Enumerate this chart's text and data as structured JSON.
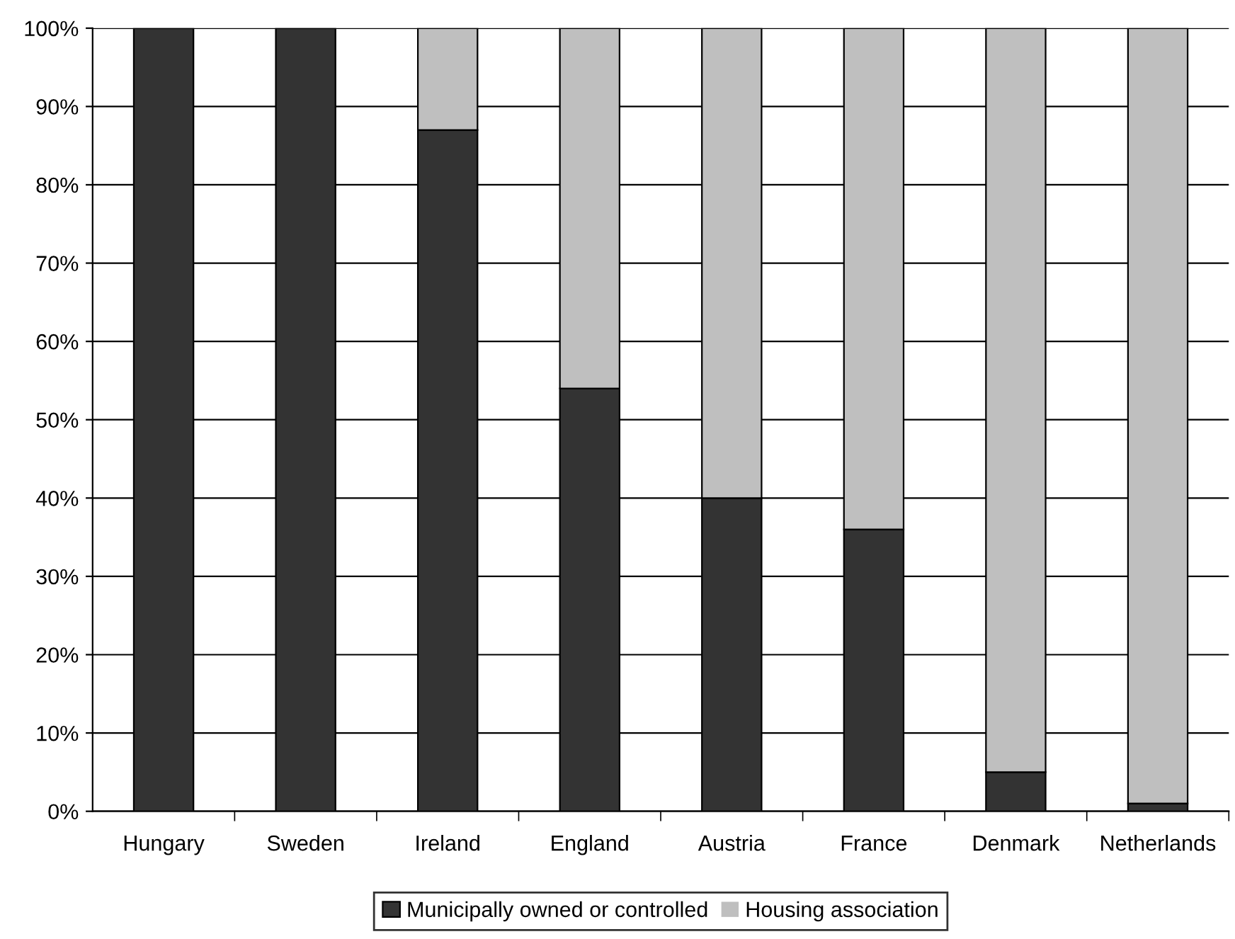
{
  "chart_data": {
    "type": "bar",
    "stacked": true,
    "categories": [
      "Hungary",
      "Sweden",
      "Ireland",
      "England",
      "Austria",
      "France",
      "Denmark",
      "Netherlands"
    ],
    "series": [
      {
        "name": "Municipally owned or controlled",
        "color": "#333333",
        "values": [
          100,
          100,
          87,
          54,
          40,
          36,
          5,
          1
        ]
      },
      {
        "name": "Housing association",
        "color": "#bfbfbf",
        "values": [
          0,
          0,
          13,
          46,
          60,
          64,
          95,
          99
        ]
      }
    ],
    "ylim": [
      0,
      100
    ],
    "yticks": [
      {
        "value": 0,
        "label": "0%"
      },
      {
        "value": 10,
        "label": "10%"
      },
      {
        "value": 20,
        "label": "20%"
      },
      {
        "value": 30,
        "label": "30%"
      },
      {
        "value": 40,
        "label": "40%"
      },
      {
        "value": 50,
        "label": "50%"
      },
      {
        "value": 60,
        "label": "60%"
      },
      {
        "value": 70,
        "label": "70%"
      },
      {
        "value": 80,
        "label": "80%"
      },
      {
        "value": 90,
        "label": "90%"
      },
      {
        "value": 100,
        "label": "100%"
      }
    ],
    "grid": "y",
    "legend": "bottom"
  }
}
